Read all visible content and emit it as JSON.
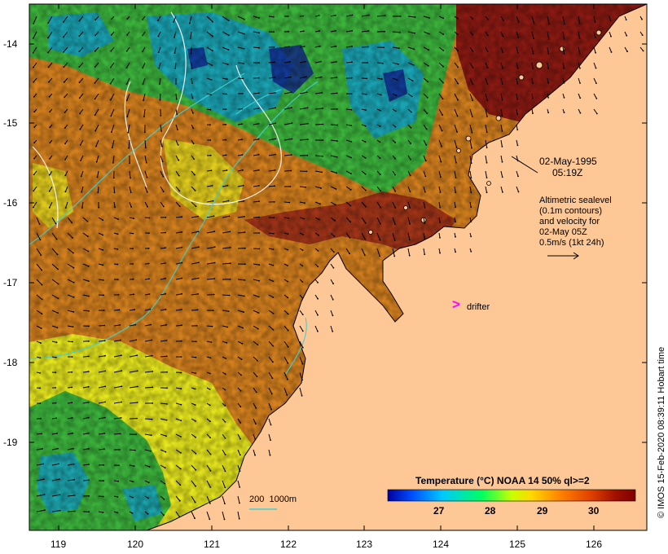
{
  "map": {
    "lon_range": [
      118.6,
      126.7
    ],
    "lat_range": [
      -20.1,
      -13.6
    ],
    "x_ticks": [
      "119",
      "120",
      "121",
      "122",
      "123",
      "124",
      "125",
      "126"
    ],
    "y_ticks": [
      "-14",
      "-15",
      "-16",
      "-17",
      "-18",
      "-19"
    ],
    "ocean_colors": {
      "warm": "#8a1a12",
      "orange": "#d4801e",
      "yellow": "#e6e61e",
      "green": "#3cb43c",
      "cyan": "#14a0c8",
      "blue": "#102090"
    },
    "land_color": "#fdc896"
  },
  "annotation": {
    "date": "02-May-1995",
    "time": "05:19Z",
    "lines": [
      "Altimetric sealevel",
      "(0.1m contours)",
      "and velocity for",
      "02-May 05Z",
      "0.5m/s (1kt 24h)"
    ]
  },
  "drifter": {
    "symbol": ">",
    "label": "drifter",
    "color": "#ff00ff"
  },
  "scale": {
    "label": "200  1000m"
  },
  "colorbar": {
    "title": "Temperature (°C) NOAA 14 50% ql>=2",
    "ticks": [
      "27",
      "28",
      "29",
      "30"
    ],
    "range": [
      26.0,
      30.8
    ],
    "colors": [
      "#0000a0",
      "#0050ff",
      "#00c8ff",
      "#00ff60",
      "#c8ff00",
      "#ffd800",
      "#ff8000",
      "#e04000",
      "#a01000",
      "#800000"
    ]
  },
  "credit": "© IMOS 15-Feb-2020 08:39:11 Hobart time"
}
